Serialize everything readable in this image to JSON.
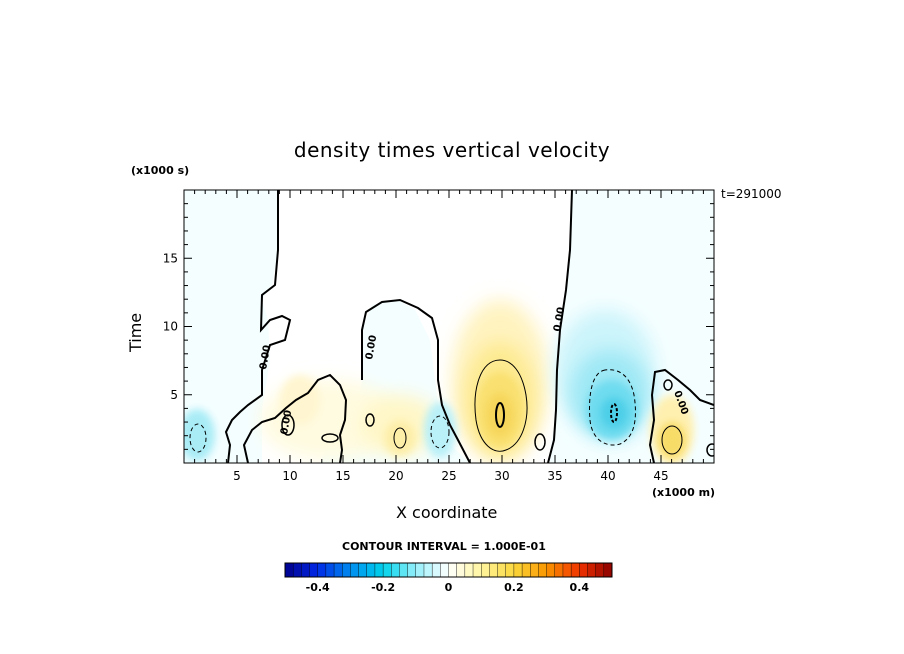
{
  "chart_data": {
    "type": "heatmap",
    "title": "density times vertical velocity",
    "xlabel": "X coordinate",
    "ylabel": "Time",
    "x_units": "(x1000 m)",
    "y_units": "(x1000 s)",
    "time_tag": "t=291000",
    "xlim": [
      0,
      50
    ],
    "ylim": [
      0,
      20
    ],
    "x_ticks": [
      5,
      10,
      15,
      20,
      25,
      30,
      35,
      40,
      45
    ],
    "y_ticks": [
      5,
      10,
      15
    ],
    "contour_interval_text": "CONTOUR INTERVAL = 1.000E-01",
    "contour_label": "0.00",
    "colorbar": {
      "range": [
        -0.5,
        0.5
      ],
      "ticks": [
        "-0.4",
        "-0.2",
        "0",
        "0.2",
        "0.4"
      ],
      "tick_values": [
        -0.4,
        -0.2,
        0,
        0.2,
        0.4
      ]
    },
    "features": [
      {
        "kind": "positive",
        "x": 30.0,
        "t": 3.5,
        "peak": 0.22
      },
      {
        "kind": "negative",
        "x": 40.5,
        "t": 3.5,
        "peak": -0.25
      },
      {
        "kind": "positive",
        "x": 46.5,
        "t": 1.5,
        "peak": 0.15
      },
      {
        "kind": "negative",
        "x": 1.5,
        "t": 2.0,
        "peak": -0.12
      },
      {
        "kind": "negative",
        "x": 24.0,
        "t": 2.5,
        "peak": -0.12
      },
      {
        "kind": "positive",
        "x": 20.5,
        "t": 2.0,
        "peak": 0.08
      }
    ]
  }
}
